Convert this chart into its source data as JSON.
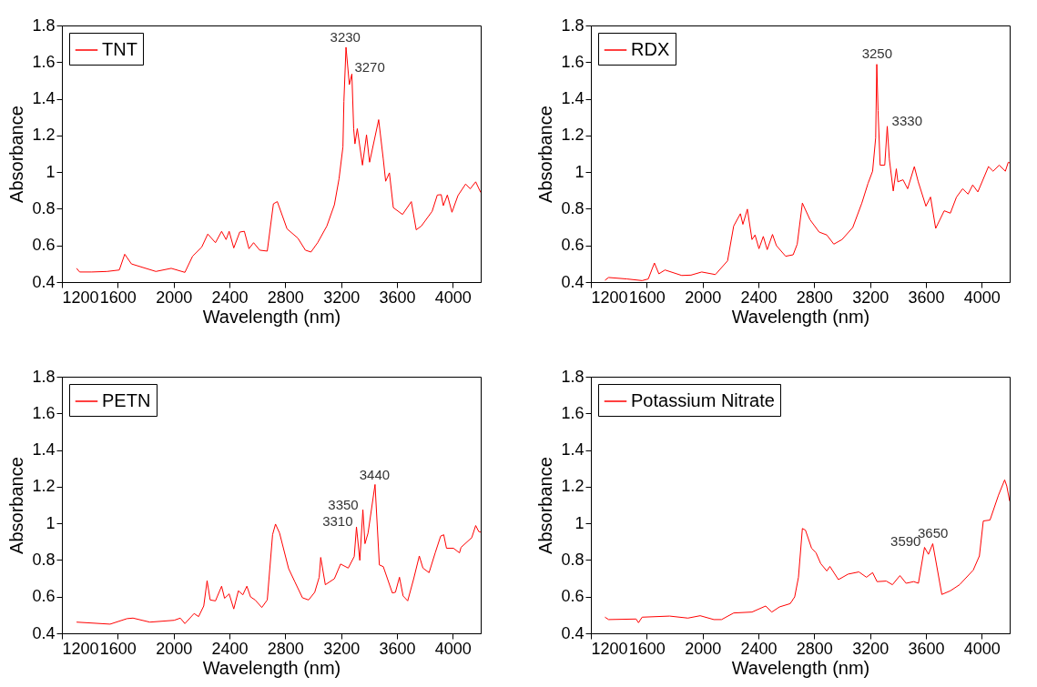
{
  "chart_data": [
    {
      "type": "line",
      "xlabel": "Wavelength (nm)",
      "ylabel": "Absorbance",
      "xlim": [
        1200,
        4200
      ],
      "ylim": [
        0.4,
        1.8
      ],
      "xticks": [
        1200,
        1600,
        2000,
        2400,
        2800,
        3200,
        3600,
        4000
      ],
      "yticks": [
        0.4,
        0.6,
        0.8,
        1,
        1.2,
        1.4,
        1.6,
        1.8
      ],
      "grid": false,
      "legend": "top left",
      "annotations": [
        {
          "text": "3230",
          "x": 3230,
          "y": 1.68
        },
        {
          "text": "3270",
          "x": 3270,
          "y": 1.54
        }
      ],
      "series": [
        {
          "name": "TNT",
          "color": "#ff0000",
          "x": [
            1305,
            1327,
            1414,
            1524,
            1611,
            1650,
            1698,
            1873,
            1983,
            2081,
            2136,
            2201,
            2245,
            2300,
            2344,
            2376,
            2398,
            2431,
            2474,
            2507,
            2540,
            2573,
            2617,
            2671,
            2715,
            2743,
            2813,
            2890,
            2944,
            2984,
            3032,
            3098,
            3152,
            3185,
            3213,
            3220,
            3235,
            3259,
            3277,
            3290,
            3299,
            3316,
            3353,
            3382,
            3404,
            3469,
            3502,
            3519,
            3546,
            3574,
            3640,
            3703,
            3738,
            3775,
            3852,
            3889,
            3917,
            3932,
            3961,
            3994,
            4037,
            4092,
            4125,
            4164,
            4200
          ],
          "values": [
            0.475,
            0.455,
            0.455,
            0.458,
            0.466,
            0.552,
            0.499,
            0.458,
            0.475,
            0.453,
            0.541,
            0.59,
            0.662,
            0.615,
            0.677,
            0.632,
            0.677,
            0.586,
            0.673,
            0.677,
            0.582,
            0.615,
            0.574,
            0.569,
            0.827,
            0.839,
            0.69,
            0.64,
            0.574,
            0.564,
            0.615,
            0.706,
            0.822,
            0.963,
            1.137,
            1.386,
            1.681,
            1.477,
            1.535,
            1.237,
            1.154,
            1.237,
            1.038,
            1.203,
            1.054,
            1.286,
            1.071,
            0.95,
            0.996,
            0.806,
            0.769,
            0.839,
            0.685,
            0.706,
            0.786,
            0.875,
            0.877,
            0.817,
            0.875,
            0.781,
            0.872,
            0.935,
            0.909,
            0.947,
            0.889
          ]
        }
      ]
    },
    {
      "type": "line",
      "xlabel": "Wavelength (nm)",
      "ylabel": "Absorbance",
      "xlim": [
        1200,
        4200
      ],
      "ylim": [
        0.4,
        1.8
      ],
      "xticks": [
        1200,
        1600,
        2000,
        2400,
        2800,
        3200,
        3600,
        4000
      ],
      "yticks": [
        0.4,
        0.6,
        0.8,
        1,
        1.2,
        1.4,
        1.6,
        1.8
      ],
      "grid": false,
      "legend": "top left",
      "annotations": [
        {
          "text": "3250",
          "x": 3250,
          "y": 1.59
        },
        {
          "text": "3330",
          "x": 3330,
          "y": 1.25
        }
      ],
      "series": [
        {
          "name": "RDX",
          "color": "#ff0000",
          "x": [
            1301,
            1327,
            1458,
            1567,
            1611,
            1655,
            1687,
            1731,
            1851,
            1917,
            1994,
            2092,
            2179,
            2223,
            2271,
            2289,
            2321,
            2354,
            2376,
            2404,
            2435,
            2463,
            2501,
            2529,
            2595,
            2649,
            2678,
            2715,
            2770,
            2835,
            2890,
            2940,
            2999,
            3076,
            3141,
            3185,
            3218,
            3240,
            3248,
            3257,
            3272,
            3305,
            3323,
            3338,
            3366,
            3388,
            3399,
            3436,
            3469,
            3517,
            3545,
            3600,
            3633,
            3670,
            3731,
            3775,
            3819,
            3863,
            3902,
            3935,
            3972,
            4048,
            4081,
            4125,
            4169,
            4190,
            4200
          ],
          "values": [
            0.41,
            0.425,
            0.417,
            0.408,
            0.417,
            0.504,
            0.445,
            0.466,
            0.436,
            0.438,
            0.455,
            0.441,
            0.516,
            0.706,
            0.773,
            0.715,
            0.798,
            0.632,
            0.657,
            0.582,
            0.649,
            0.577,
            0.66,
            0.599,
            0.541,
            0.549,
            0.607,
            0.831,
            0.74,
            0.673,
            0.657,
            0.607,
            0.632,
            0.698,
            0.831,
            0.938,
            1.005,
            1.187,
            1.588,
            1.336,
            1.038,
            1.038,
            1.25,
            1.071,
            0.897,
            1.018,
            0.947,
            0.958,
            0.909,
            1.03,
            0.947,
            0.814,
            0.864,
            0.693,
            0.789,
            0.776,
            0.864,
            0.909,
            0.88,
            0.93,
            0.892,
            1.03,
            1.005,
            1.038,
            1.005,
            1.054,
            1.05
          ]
        }
      ]
    },
    {
      "type": "line",
      "xlabel": "Wavelength (nm)",
      "ylabel": "Absorbance",
      "xlim": [
        1200,
        4200
      ],
      "ylim": [
        0.4,
        1.8
      ],
      "xticks": [
        1200,
        1600,
        2000,
        2400,
        2800,
        3200,
        3600,
        4000
      ],
      "yticks": [
        0.4,
        0.6,
        0.8,
        1,
        1.2,
        1.4,
        1.6,
        1.8
      ],
      "grid": false,
      "legend": "top left",
      "annotations": [
        {
          "text": "3310",
          "x": 3310,
          "y": 0.98
        },
        {
          "text": "3350",
          "x": 3350,
          "y": 1.07
        },
        {
          "text": "3440",
          "x": 3440,
          "y": 1.21
        }
      ],
      "series": [
        {
          "name": "PETN",
          "color": "#ff0000",
          "x": [
            1305,
            1545,
            1666,
            1709,
            1830,
            2004,
            2048,
            2081,
            2147,
            2179,
            2216,
            2240,
            2262,
            2300,
            2344,
            2365,
            2398,
            2431,
            2464,
            2496,
            2525,
            2551,
            2584,
            2632,
            2671,
            2709,
            2730,
            2759,
            2824,
            2868,
            2923,
            2967,
            3011,
            3043,
            3054,
            3087,
            3152,
            3196,
            3251,
            3294,
            3310,
            3334,
            3356,
            3371,
            3393,
            3443,
            3474,
            3502,
            3567,
            3589,
            3618,
            3644,
            3677,
            3720,
            3760,
            3786,
            3830,
            3874,
            3913,
            3935,
            3955,
            4005,
            4048,
            4059,
            4136,
            4164,
            4186,
            4200
          ],
          "values": [
            0.461,
            0.45,
            0.48,
            0.483,
            0.461,
            0.471,
            0.483,
            0.453,
            0.508,
            0.491,
            0.549,
            0.687,
            0.582,
            0.577,
            0.657,
            0.591,
            0.615,
            0.533,
            0.632,
            0.61,
            0.657,
            0.599,
            0.582,
            0.541,
            0.582,
            0.938,
            0.996,
            0.947,
            0.753,
            0.682,
            0.594,
            0.582,
            0.624,
            0.706,
            0.814,
            0.665,
            0.698,
            0.778,
            0.756,
            0.819,
            0.98,
            0.798,
            1.074,
            0.889,
            0.947,
            1.212,
            0.773,
            0.764,
            0.62,
            0.624,
            0.706,
            0.604,
            0.577,
            0.698,
            0.822,
            0.756,
            0.731,
            0.839,
            0.93,
            0.938,
            0.864,
            0.864,
            0.839,
            0.869,
            0.922,
            0.988,
            0.955,
            0.952
          ]
        }
      ]
    },
    {
      "type": "line",
      "xlabel": "Wavelength (nm)",
      "ylabel": "Absorbance",
      "xlim": [
        1200,
        4200
      ],
      "ylim": [
        0.4,
        1.8
      ],
      "xticks": [
        1200,
        1600,
        2000,
        2400,
        2800,
        3200,
        3600,
        4000
      ],
      "yticks": [
        0.4,
        0.6,
        0.8,
        1,
        1.2,
        1.4,
        1.6,
        1.8
      ],
      "grid": false,
      "legend": "top left",
      "annotations": [
        {
          "text": "3590",
          "x": 3590,
          "y": 0.87
        },
        {
          "text": "3650",
          "x": 3650,
          "y": 0.89
        }
      ],
      "series": [
        {
          "name": "Potassium Nitrate",
          "color": "#ff0000",
          "x": [
            1301,
            1327,
            1524,
            1541,
            1567,
            1764,
            1895,
            1983,
            2081,
            2136,
            2223,
            2354,
            2452,
            2496,
            2551,
            2628,
            2660,
            2687,
            2715,
            2737,
            2781,
            2813,
            2846,
            2890,
            2912,
            2973,
            3043,
            3120,
            3174,
            3218,
            3250,
            3316,
            3360,
            3414,
            3458,
            3513,
            3546,
            3590,
            3618,
            3649,
            3714,
            3775,
            3841,
            3939,
            3983,
            4011,
            4059,
            4120,
            4164,
            4179,
            4200
          ],
          "values": [
            0.488,
            0.475,
            0.478,
            0.458,
            0.488,
            0.494,
            0.483,
            0.496,
            0.475,
            0.475,
            0.511,
            0.516,
            0.549,
            0.516,
            0.544,
            0.562,
            0.599,
            0.706,
            0.972,
            0.963,
            0.864,
            0.839,
            0.781,
            0.74,
            0.765,
            0.693,
            0.723,
            0.735,
            0.706,
            0.731,
            0.682,
            0.685,
            0.665,
            0.715,
            0.673,
            0.682,
            0.673,
            0.869,
            0.831,
            0.889,
            0.612,
            0.632,
            0.665,
            0.745,
            0.822,
            1.013,
            1.018,
            1.154,
            1.237,
            1.204,
            1.121
          ]
        }
      ]
    }
  ]
}
